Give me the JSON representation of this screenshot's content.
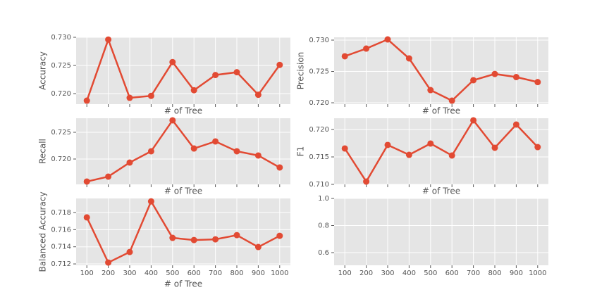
{
  "chart_data": [
    {
      "type": "line",
      "ylabel": "Accuracy",
      "xlabel": "# of Tree",
      "color": "#E24A33",
      "grid": true,
      "categories": [
        100,
        200,
        300,
        400,
        500,
        600,
        700,
        800,
        900,
        1000
      ],
      "values": [
        0.71875,
        0.7296,
        0.71925,
        0.7196,
        0.7256,
        0.7206,
        0.7233,
        0.7238,
        0.7198,
        0.7251
      ],
      "ylim": [
        0.71813,
        0.73
      ],
      "yticks": [
        {
          "value": 0.72,
          "label": "0.720"
        },
        0.725,
        {
          "value": 0.73,
          "label": "0.730"
        }
      ]
    },
    {
      "type": "line",
      "ylabel": "Precision",
      "xlabel": "# of Tree",
      "color": "#E24A33",
      "grid": true,
      "categories": [
        100,
        200,
        300,
        400,
        500,
        600,
        700,
        800,
        900,
        1000
      ],
      "values": [
        0.72742,
        0.72865,
        0.73011,
        0.72708,
        0.72202,
        0.72034,
        0.7236,
        0.7246,
        0.7241,
        0.7233
      ],
      "ylim": [
        0.71978,
        0.73045
      ],
      "yticks": [
        {
          "value": 0.72,
          "label": "0.720"
        },
        0.725,
        {
          "value": 0.73,
          "label": "0.730"
        }
      ]
    },
    {
      "type": "line",
      "ylabel": "Recall",
      "xlabel": "# of Tree",
      "color": "#E24A33",
      "grid": true,
      "categories": [
        100,
        200,
        300,
        400,
        500,
        600,
        700,
        800,
        900,
        1000
      ],
      "values": [
        0.71579,
        0.71671,
        0.71934,
        0.72145,
        0.72724,
        0.72197,
        0.72329,
        0.72145,
        0.72066,
        0.71842
      ],
      "ylim": [
        0.71526,
        0.72763
      ],
      "yticks": [
        {
          "value": 0.72,
          "label": "0.720"
        },
        0.725
      ]
    },
    {
      "type": "line",
      "ylabel": "F1",
      "xlabel": "# of Tree",
      "color": "#E24A33",
      "grid": true,
      "categories": [
        100,
        200,
        300,
        400,
        500,
        600,
        700,
        800,
        900,
        1000
      ],
      "values": [
        0.71654,
        0.71051,
        0.71718,
        0.71538,
        0.71744,
        0.71526,
        0.72167,
        0.71667,
        0.7209,
        0.71679
      ],
      "ylim": [
        0.71,
        0.72205
      ],
      "yticks": [
        {
          "value": 0.71,
          "label": "0.710"
        },
        0.715,
        {
          "value": 0.72,
          "label": "0.720"
        }
      ]
    },
    {
      "type": "line",
      "ylabel": "Balanced Accuracy",
      "xlabel": "# of Tree",
      "color": "#E24A33",
      "grid": true,
      "categories": [
        100,
        200,
        300,
        400,
        500,
        600,
        700,
        800,
        900,
        1000
      ],
      "values": [
        0.71743,
        0.71216,
        0.71339,
        0.7193,
        0.71504,
        0.71479,
        0.71487,
        0.71536,
        0.71397,
        0.71528
      ],
      "ylim": [
        0.71184,
        0.71964
      ],
      "yticks": [
        0.712,
        0.714,
        0.716,
        0.718
      ]
    },
    {
      "type": "empty",
      "grid": true,
      "categories": [
        100,
        200,
        300,
        400,
        500,
        600,
        700,
        800,
        900,
        1000
      ],
      "ylim": [
        0.5065,
        1.0
      ],
      "yticks": [
        {
          "value": 0.6,
          "label": "0.6"
        },
        {
          "value": 0.8,
          "label": "0.8"
        },
        {
          "value": 1.0,
          "label": "1.0"
        }
      ]
    }
  ]
}
